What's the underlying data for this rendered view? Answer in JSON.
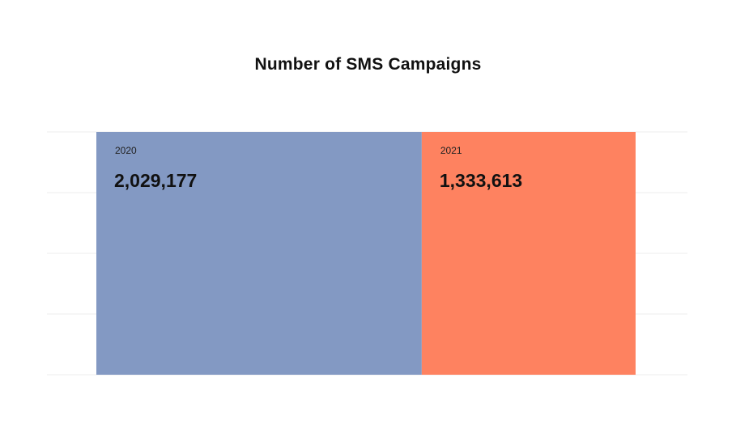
{
  "title": "Number of SMS Campaigns",
  "chart_data": {
    "type": "bar",
    "layout": "proportional-horizontal-segments",
    "title": "Number of SMS Campaigns",
    "categories": [
      "2020",
      "2021"
    ],
    "values": [
      2029177,
      1333613
    ],
    "value_labels": [
      "2,029,177",
      "1,333,613"
    ],
    "colors": [
      "#8399c3",
      "#fe8260"
    ],
    "xlabel": "",
    "ylabel": "",
    "grid": true,
    "legend": "none"
  }
}
